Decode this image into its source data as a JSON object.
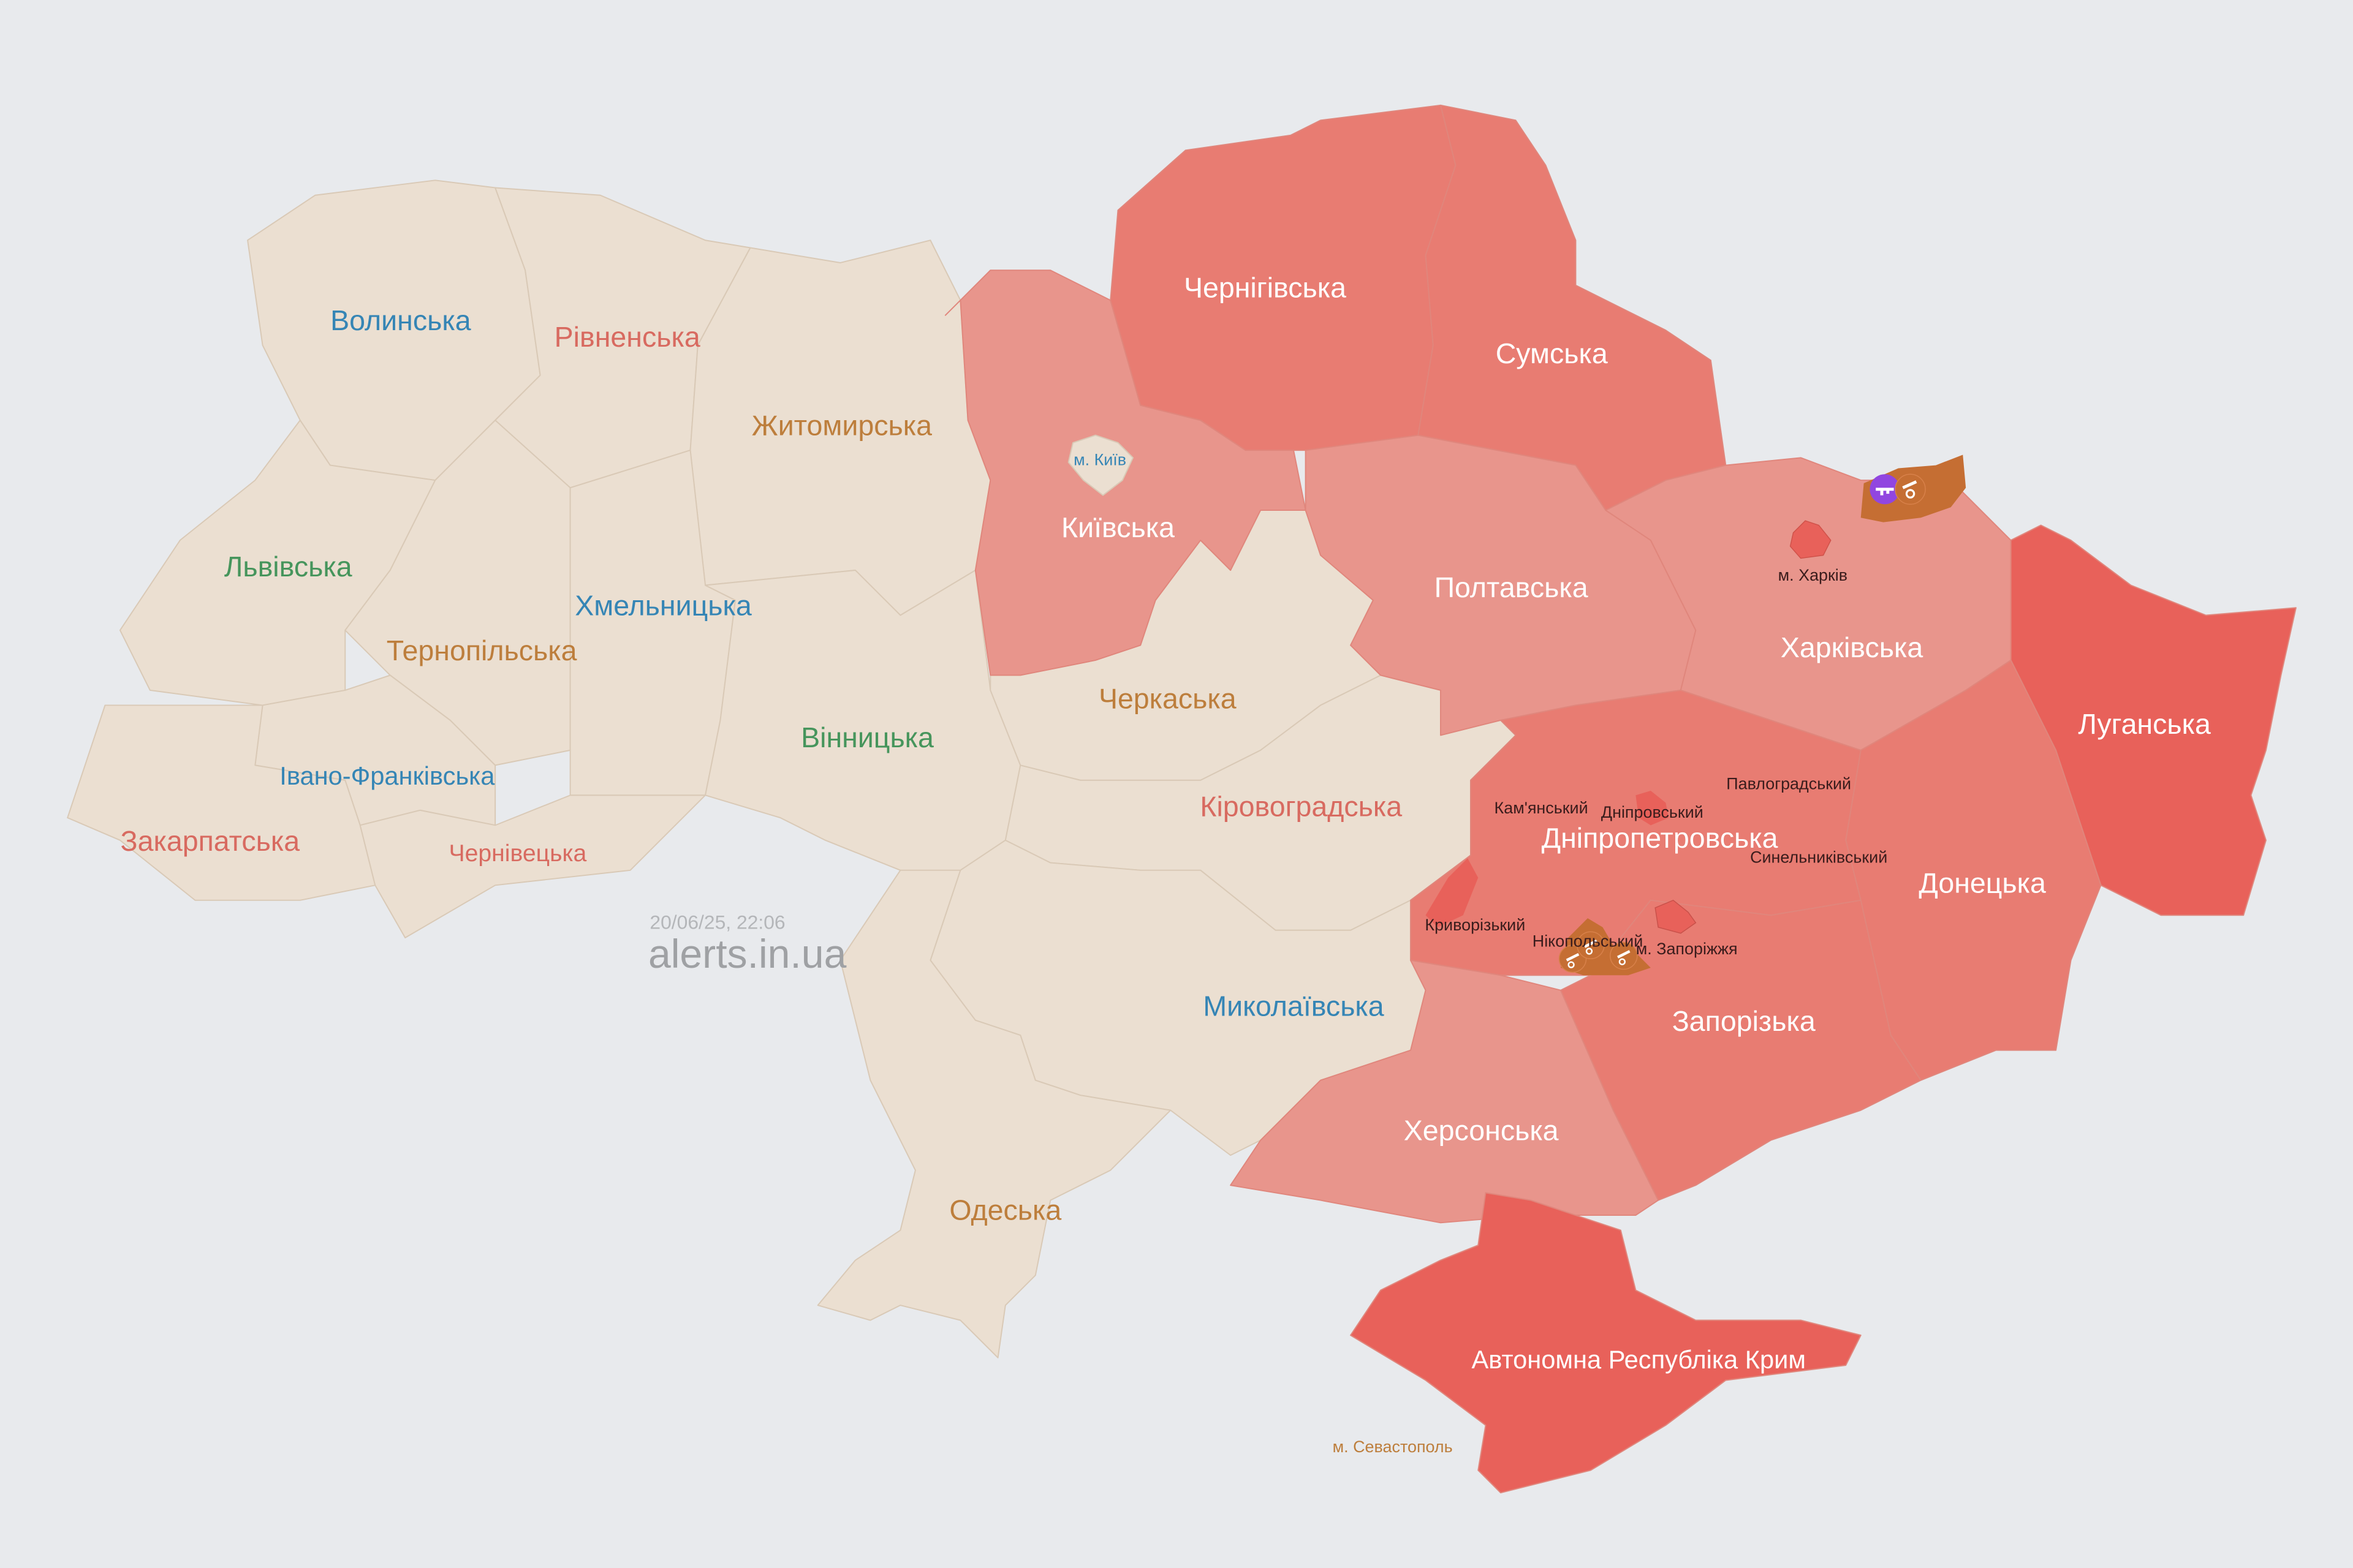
{
  "timestamp": "20/06/25, 22:06",
  "brand": "alerts.in.ua",
  "colors": {
    "background": "#e8eaed",
    "no_alert": "#ebdfd1",
    "alert_light": "#e8958c",
    "alert_medium": "#e87c72",
    "alert_strong": "#e8615a",
    "threat_artillery": "#c56e33",
    "threat_small_arms": "#9146e0",
    "label_blue": "#3585b5",
    "label_red": "#d86a60",
    "label_brown": "#bd7e3c",
    "label_green": "#46955c",
    "label_white": "#ffffff",
    "label_raion": "#3a1c1c"
  },
  "regions": {
    "volyn": {
      "name": "Волинська",
      "status": "none"
    },
    "rivne": {
      "name": "Рівненська",
      "status": "none"
    },
    "zhytomyr": {
      "name": "Житомирська",
      "status": "none"
    },
    "lviv": {
      "name": "Львівська",
      "status": "none"
    },
    "khmelnytskyi": {
      "name": "Хмельницька",
      "status": "none"
    },
    "ternopil": {
      "name": "Тернопільська",
      "status": "none"
    },
    "ivano_frankivsk": {
      "name": "Івано-Франківська",
      "status": "none"
    },
    "zakarpattia": {
      "name": "Закарпатська",
      "status": "none"
    },
    "chernivtsi": {
      "name": "Чернівецька",
      "status": "none"
    },
    "vinnytsia": {
      "name": "Вінницька",
      "status": "none"
    },
    "kyiv": {
      "name": "Київська",
      "status": "alert"
    },
    "kyiv_city": {
      "name": "м. Київ",
      "status": "none"
    },
    "chernihiv": {
      "name": "Чернігівська",
      "status": "alert"
    },
    "sumy": {
      "name": "Сумська",
      "status": "alert"
    },
    "poltava": {
      "name": "Полтавська",
      "status": "alert"
    },
    "kharkiv": {
      "name": "Харківська",
      "status": "alert"
    },
    "kharkiv_city": {
      "name": "м. Харків",
      "status": "alert"
    },
    "luhansk": {
      "name": "Луганська",
      "status": "alert"
    },
    "donetsk": {
      "name": "Донецька",
      "status": "alert"
    },
    "dnipro": {
      "name": "Дніпропетровська",
      "status": "alert"
    },
    "zaporizhzhia": {
      "name": "Запорізька",
      "status": "alert"
    },
    "zaporizhzhia_city": {
      "name": "м. Запоріжжя",
      "status": "alert"
    },
    "kherson": {
      "name": "Херсонська",
      "status": "alert"
    },
    "crimea": {
      "name": "Автономна Республіка Крим",
      "status": "alert"
    },
    "sevastopol": {
      "name": "м. Севастополь",
      "status": "none"
    },
    "cherkasy": {
      "name": "Черкаська",
      "status": "none"
    },
    "kirovohrad": {
      "name": "Кіровоградська",
      "status": "none"
    },
    "mykolaiv": {
      "name": "Миколаївська",
      "status": "none"
    },
    "odesa": {
      "name": "Одеська",
      "status": "none"
    }
  },
  "raions": {
    "kamianskyi": "Кам'янський",
    "dniprovskyi": "Дніпровський",
    "pavlohradskyi": "Павлоградський",
    "synelnykivskyi": "Синельниківський",
    "kryvorizkyi": "Криворізький",
    "nikopolskyi": "Нікопольський"
  },
  "threat_icons": [
    "small-arms-icon",
    "artillery-icon"
  ]
}
